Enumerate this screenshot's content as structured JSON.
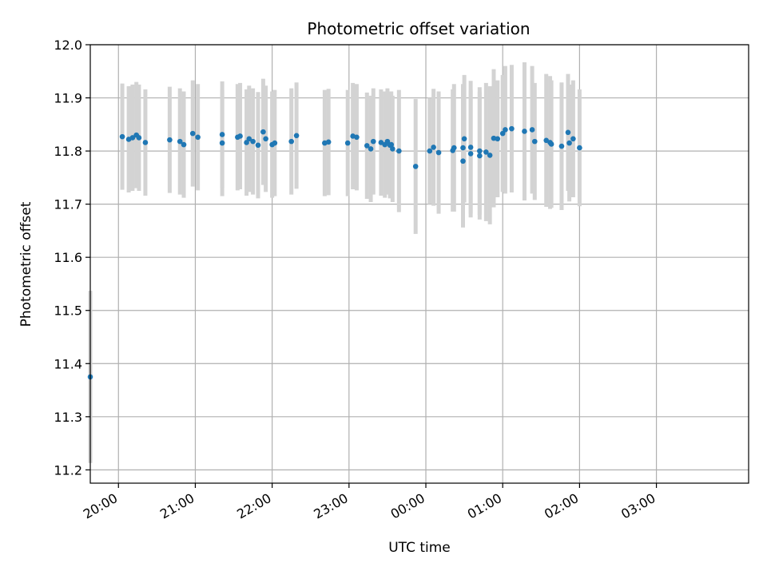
{
  "chart_data": {
    "type": "scatter",
    "title": "Photometric offset variation",
    "xlabel": "UTC time",
    "ylabel": "Photometric offset",
    "xlim": [
      "19:38",
      "04:12"
    ],
    "ylim": [
      11.175,
      12.0
    ],
    "grid": true,
    "x_ticks": [
      "20:00",
      "21:00",
      "22:00",
      "23:00",
      "00:00",
      "01:00",
      "02:00",
      "03:00"
    ],
    "y_ticks": [
      "11.2",
      "11.3",
      "11.4",
      "11.5",
      "11.6",
      "11.7",
      "11.8",
      "11.9",
      "12.0"
    ],
    "colors": {
      "point": "#1f77b4",
      "errorbar": "#d3d3d3",
      "grid": "#b0b0b0"
    },
    "series": [
      {
        "x": [
          "19:38",
          "20:03",
          "20:08",
          "20:11",
          "20:14",
          "20:16",
          "20:21",
          "20:40",
          "20:48",
          "20:51",
          "20:58",
          "21:02",
          "21:21",
          "21:21",
          "21:33",
          "21:35",
          "21:40",
          "21:42",
          "21:45",
          "21:49",
          "21:53",
          "21:55",
          "22:00",
          "22:02",
          "22:15",
          "22:19",
          "22:41",
          "22:44",
          "22:59",
          "23:03",
          "23:06",
          "23:14",
          "23:17",
          "23:19",
          "23:25",
          "23:28",
          "23:30",
          "23:32",
          "23:33",
          "23:34",
          "23:39",
          "23:52",
          "00:03",
          "00:06",
          "00:10",
          "00:21",
          "00:22",
          "00:29",
          "00:29",
          "00:30",
          "00:35",
          "00:35",
          "00:42",
          "00:42",
          "00:47",
          "00:50",
          "00:53",
          "00:56",
          "01:00",
          "01:02",
          "01:07",
          "01:17",
          "01:23",
          "01:25",
          "01:34",
          "01:37",
          "01:38",
          "01:46",
          "01:51",
          "01:52",
          "01:55",
          "02:00"
        ],
        "y": [
          11.375,
          11.827,
          11.822,
          11.825,
          11.83,
          11.825,
          11.816,
          11.821,
          11.818,
          11.812,
          11.833,
          11.826,
          11.815,
          11.831,
          11.826,
          11.828,
          11.816,
          11.823,
          11.818,
          11.811,
          11.836,
          11.823,
          11.812,
          11.815,
          11.818,
          11.829,
          11.815,
          11.817,
          11.815,
          11.828,
          11.826,
          11.81,
          11.804,
          11.818,
          11.816,
          11.812,
          11.818,
          11.811,
          11.812,
          11.804,
          11.8,
          11.771,
          11.8,
          11.807,
          11.797,
          11.801,
          11.806,
          11.806,
          11.781,
          11.823,
          11.795,
          11.807,
          11.791,
          11.8,
          11.798,
          11.792,
          11.824,
          11.823,
          11.833,
          11.84,
          11.842,
          11.837,
          11.84,
          11.818,
          11.82,
          11.816,
          11.813,
          11.809,
          11.835,
          11.815,
          11.823,
          11.806
        ],
        "yerr": [
          0.162,
          0.1,
          0.1,
          0.1,
          0.1,
          0.1,
          0.1,
          0.1,
          0.1,
          0.1,
          0.1,
          0.1,
          0.1,
          0.1,
          0.1,
          0.1,
          0.1,
          0.1,
          0.1,
          0.1,
          0.1,
          0.1,
          0.1,
          0.1,
          0.1,
          0.1,
          0.1,
          0.1,
          0.1,
          0.1,
          0.1,
          0.1,
          0.1,
          0.1,
          0.1,
          0.1,
          0.1,
          0.1,
          0.1,
          0.1,
          0.115,
          0.127,
          0.1,
          0.11,
          0.115,
          0.115,
          0.12,
          0.12,
          0.125,
          0.12,
          0.12,
          0.125,
          0.12,
          0.12,
          0.13,
          0.13,
          0.13,
          0.11,
          0.11,
          0.12,
          0.12,
          0.13,
          0.12,
          0.11,
          0.125,
          0.125,
          0.12,
          0.12,
          0.11,
          0.11,
          0.11,
          0.11
        ]
      }
    ]
  }
}
